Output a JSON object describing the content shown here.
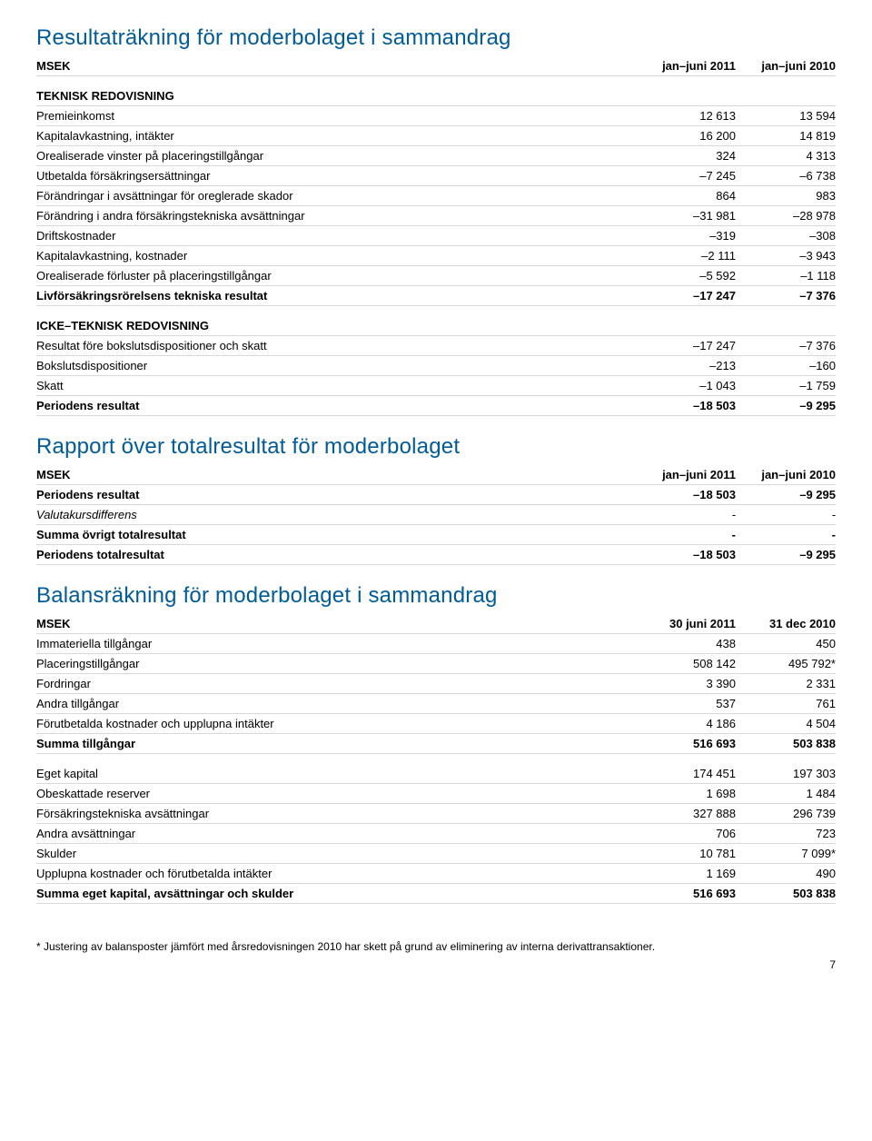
{
  "brand_color": "#005b9a",
  "section1": {
    "title": "Resultaträkning för moderbolaget i sammandrag",
    "header": {
      "msek": "MSEK",
      "c1": "jan–juni 2011",
      "c2": "jan–juni 2010"
    },
    "sub1": "TEKNISK REDOVISNING",
    "rows1": [
      {
        "label": "Premieinkomst",
        "c1": "12 613",
        "c2": "13 594"
      },
      {
        "label": "Kapitalavkastning, intäkter",
        "c1": "16 200",
        "c2": "14 819"
      },
      {
        "label": "Orealiserade vinster på placeringstillgångar",
        "c1": "324",
        "c2": "4 313"
      },
      {
        "label": "Utbetalda försäkringsersättningar",
        "c1": "–7 245",
        "c2": "–6 738"
      },
      {
        "label": "Förändringar i avsättningar för oreglerade skador",
        "c1": "864",
        "c2": "983"
      },
      {
        "label": "Förändring i andra försäkringstekniska avsättningar",
        "c1": "–31 981",
        "c2": "–28 978"
      },
      {
        "label": "Driftskostnader",
        "c1": "–319",
        "c2": "–308"
      },
      {
        "label": "Kapitalavkastning, kostnader",
        "c1": "–2 111",
        "c2": "–3 943"
      },
      {
        "label": "Orealiserade förluster på placeringstillgångar",
        "c1": "–5 592",
        "c2": "–1 118"
      }
    ],
    "total1": {
      "label": "Livförsäkringsrörelsens tekniska resultat",
      "c1": "–17 247",
      "c2": "–7 376"
    },
    "sub2": "ICKE–TEKNISK REDOVISNING",
    "rows2": [
      {
        "label": "Resultat före bokslutsdispositioner och skatt",
        "c1": "–17 247",
        "c2": "–7 376"
      },
      {
        "label": "Bokslutsdispositioner",
        "c1": "–213",
        "c2": "–160"
      },
      {
        "label": "Skatt",
        "c1": "–1 043",
        "c2": "–1 759"
      }
    ],
    "total2": {
      "label": "Periodens resultat",
      "c1": "–18 503",
      "c2": "–9 295"
    }
  },
  "section2": {
    "title": "Rapport över totalresultat för moderbolaget",
    "header": {
      "msek": "MSEK",
      "c1": "jan–juni 2011",
      "c2": "jan–juni 2010"
    },
    "rows": [
      {
        "label": "Periodens resultat",
        "c1": "–18 503",
        "c2": "–9 295",
        "bold": true
      },
      {
        "label": "Valutakursdifferens",
        "c1": "-",
        "c2": "-",
        "italic": true
      },
      {
        "label": "Summa övrigt totalresultat",
        "c1": "-",
        "c2": "-",
        "bold": true
      },
      {
        "label": "Periodens totalresultat",
        "c1": "–18 503",
        "c2": "–9 295",
        "bold": true
      }
    ]
  },
  "section3": {
    "title": "Balansräkning för moderbolaget i sammandrag",
    "header": {
      "msek": "MSEK",
      "c1": "30 juni 2011",
      "c2": "31 dec 2010"
    },
    "rows1": [
      {
        "label": "Immateriella tillgångar",
        "c1": "438",
        "c2": "450"
      },
      {
        "label": "Placeringstillgångar",
        "c1": "508 142",
        "c2": "495 792*"
      },
      {
        "label": "Fordringar",
        "c1": "3 390",
        "c2": "2 331"
      },
      {
        "label": "Andra tillgångar",
        "c1": "537",
        "c2": "761"
      },
      {
        "label": "Förutbetalda kostnader och upplupna intäkter",
        "c1": "4 186",
        "c2": "4 504"
      }
    ],
    "total1": {
      "label": "Summa tillgångar",
      "c1": "516 693",
      "c2": "503 838"
    },
    "rows2": [
      {
        "label": "Eget kapital",
        "c1": "174 451",
        "c2": "197 303"
      },
      {
        "label": "Obeskattade reserver",
        "c1": "1 698",
        "c2": "1 484"
      },
      {
        "label": "Försäkringstekniska avsättningar",
        "c1": "327 888",
        "c2": "296 739"
      },
      {
        "label": "Andra avsättningar",
        "c1": "706",
        "c2": "723"
      },
      {
        "label": "Skulder",
        "c1": "10 781",
        "c2": "7 099*"
      },
      {
        "label": "Upplupna kostnader och förutbetalda intäkter",
        "c1": "1 169",
        "c2": "490"
      }
    ],
    "total2": {
      "label": "Summa eget kapital, avsättningar och skulder",
      "c1": "516 693",
      "c2": "503 838"
    }
  },
  "footnote": "* Justering av balansposter jämfört med årsredovisningen 2010 har skett på grund av eliminering av interna derivattransaktioner.",
  "pagenum": "7"
}
